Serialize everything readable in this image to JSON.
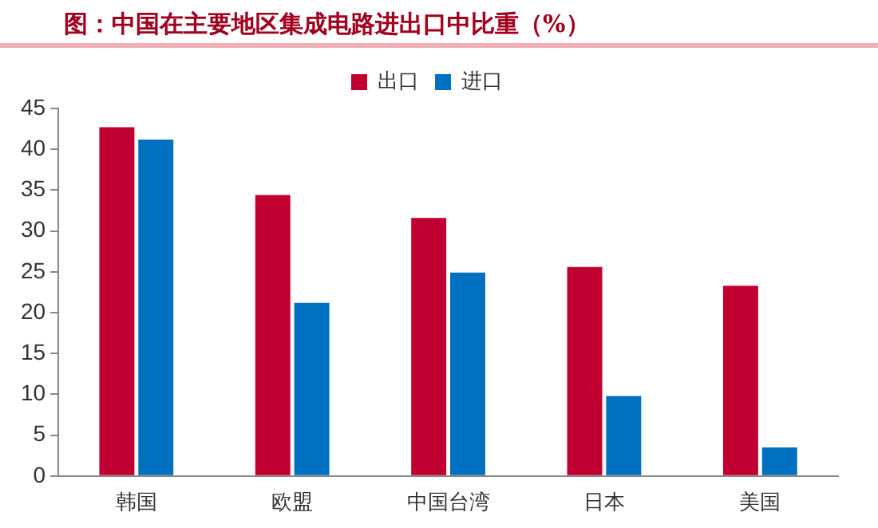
{
  "chart_data": {
    "type": "bar",
    "title": "图：中国在主要地区集成电路进出口中比重（%）",
    "categories": [
      "韩国",
      "欧盟",
      "中国台湾",
      "日本",
      "美国"
    ],
    "series": [
      {
        "name": "出口",
        "color": "#c00030",
        "values": [
          42.7,
          34.4,
          31.6,
          25.6,
          23.3
        ]
      },
      {
        "name": "进口",
        "color": "#0070c0",
        "values": [
          41.2,
          21.2,
          24.9,
          9.8,
          3.5
        ]
      }
    ],
    "ylim": [
      0,
      45
    ],
    "yticks": [
      0,
      5,
      10,
      15,
      20,
      25,
      30,
      35,
      40,
      45
    ],
    "grid": false,
    "legend": "top"
  }
}
